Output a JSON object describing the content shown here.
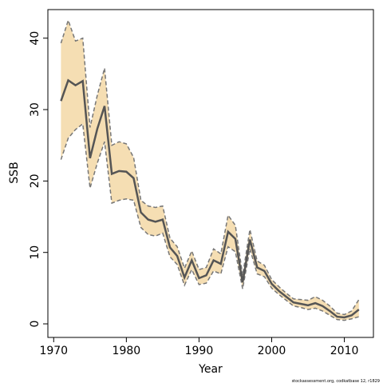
{
  "chart_data": {
    "type": "line",
    "x_label": "Year",
    "y_label": "SSB",
    "footnote": "stockassessment.org, codkatbase 12, r1829",
    "x": [
      1971,
      1972,
      1973,
      1974,
      1975,
      1976,
      1977,
      1978,
      1979,
      1980,
      1981,
      1982,
      1983,
      1984,
      1985,
      1986,
      1987,
      1988,
      1989,
      1990,
      1991,
      1992,
      1993,
      1994,
      1995,
      1996,
      1997,
      1998,
      1999,
      2000,
      2001,
      2002,
      2003,
      2004,
      2005,
      2006,
      2007,
      2008,
      2009,
      2010,
      2011,
      2012
    ],
    "values": [
      31.2,
      34.1,
      33.4,
      34.0,
      23.2,
      27.3,
      30.5,
      21.0,
      21.4,
      21.3,
      20.4,
      15.6,
      14.6,
      14.3,
      14.6,
      10.7,
      9.5,
      6.5,
      8.9,
      6.4,
      6.8,
      8.9,
      8.4,
      12.9,
      11.9,
      5.8,
      11.8,
      7.9,
      7.4,
      5.6,
      4.6,
      3.8,
      3.0,
      2.8,
      2.6,
      2.9,
      2.5,
      1.8,
      1.0,
      0.9,
      1.2,
      2.0
    ],
    "upper": [
      39.3,
      42.5,
      39.6,
      40.0,
      27.5,
      32.0,
      35.8,
      25.0,
      25.5,
      25.2,
      23.3,
      17.3,
      16.5,
      16.3,
      16.5,
      12.0,
      10.8,
      7.8,
      10.2,
      7.6,
      7.9,
      10.5,
      9.8,
      15.2,
      13.8,
      6.8,
      13.2,
      8.8,
      8.2,
      6.2,
      5.2,
      4.3,
      3.5,
      3.4,
      3.3,
      3.8,
      3.3,
      2.5,
      1.5,
      1.3,
      1.8,
      3.4
    ],
    "lower": [
      23.0,
      26.0,
      27.2,
      28.0,
      19.0,
      22.5,
      25.5,
      16.9,
      17.3,
      17.5,
      17.3,
      13.5,
      12.5,
      12.3,
      12.7,
      9.4,
      8.3,
      5.4,
      7.6,
      5.5,
      5.7,
      7.4,
      7.0,
      10.8,
      10.1,
      4.9,
      10.5,
      7.0,
      6.6,
      5.0,
      4.1,
      3.3,
      2.5,
      2.3,
      2.0,
      2.2,
      1.8,
      1.2,
      0.6,
      0.5,
      0.7,
      1.0
    ],
    "line_color": "#555555",
    "band_color": "#f5deb3",
    "band_edge_color": "#777777",
    "xlim": [
      1969.2,
      2014
    ],
    "ylim": [
      -1.9,
      44
    ],
    "xticks": [
      1970,
      1980,
      1990,
      2000,
      2010
    ],
    "yticks": [
      0,
      10,
      20,
      30,
      40
    ]
  }
}
